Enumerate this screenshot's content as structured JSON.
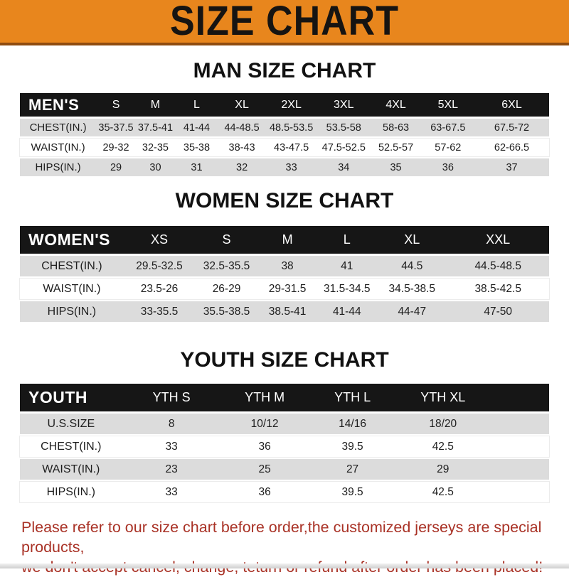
{
  "banner": {
    "title": "SIZE CHART",
    "bg_color": "#E8861D",
    "border_color": "#8F4C10",
    "text_color": "#161412"
  },
  "sections": {
    "men": {
      "title": "MAN SIZE CHART",
      "header_label": "MEN'S",
      "columns": [
        "S",
        "M",
        "L",
        "XL",
        "2XL",
        "3XL",
        "4XL",
        "5XL",
        "6XL"
      ],
      "rows": [
        {
          "label": "CHEST(IN.)",
          "values": [
            "35-37.5",
            "37.5-41",
            "41-44",
            "44-48.5",
            "48.5-53.5",
            "53.5-58",
            "58-63",
            "63-67.5",
            "67.5-72"
          ]
        },
        {
          "label": "WAIST(IN.)",
          "values": [
            "29-32",
            "32-35",
            "35-38",
            "38-43",
            "43-47.5",
            "47.5-52.5",
            "52.5-57",
            "57-62",
            "62-66.5"
          ]
        },
        {
          "label": "HIPS(IN.)",
          "values": [
            "29",
            "30",
            "31",
            "32",
            "33",
            "34",
            "35",
            "36",
            "37"
          ]
        }
      ]
    },
    "women": {
      "title": "WOMEN SIZE CHART",
      "header_label": "WOMEN'S",
      "columns": [
        "XS",
        "S",
        "M",
        "L",
        "XL",
        "XXL"
      ],
      "rows": [
        {
          "label": "CHEST(IN.)",
          "values": [
            "29.5-32.5",
            "32.5-35.5",
            "38",
            "41",
            "44.5",
            "44.5-48.5"
          ]
        },
        {
          "label": "WAIST(IN.)",
          "values": [
            "23.5-26",
            "26-29",
            "29-31.5",
            "31.5-34.5",
            "34.5-38.5",
            "38.5-42.5"
          ]
        },
        {
          "label": "HIPS(IN.)",
          "values": [
            "33-35.5",
            "35.5-38.5",
            "38.5-41",
            "41-44",
            "44-47",
            "47-50"
          ]
        }
      ]
    },
    "youth": {
      "title": "YOUTH SIZE CHART",
      "header_label": "YOUTH",
      "columns": [
        "YTH S",
        "YTH M",
        "YTH L",
        "YTH XL"
      ],
      "rows": [
        {
          "label": "U.S.SIZE",
          "values": [
            "8",
            "10/12",
            "14/16",
            "18/20"
          ]
        },
        {
          "label": "CHEST(IN.)",
          "values": [
            "33",
            "36",
            "39.5",
            "42.5"
          ]
        },
        {
          "label": "WAIST(IN.)",
          "values": [
            "23",
            "25",
            "27",
            "29"
          ]
        },
        {
          "label": "HIPS(IN.)",
          "values": [
            "33",
            "36",
            "39.5",
            "42.5"
          ]
        }
      ]
    }
  },
  "footer": {
    "line1": "Please refer to our size chart before order,the customized jerseys are special products,",
    "line2": "we don't accept cancel, change, teturn or refund after order has been placed!",
    "text_color": "#A93226"
  },
  "colors": {
    "table_header_black": "#161616",
    "row_gray": "#DCDCDC",
    "row_white": "#FFFFFF"
  }
}
